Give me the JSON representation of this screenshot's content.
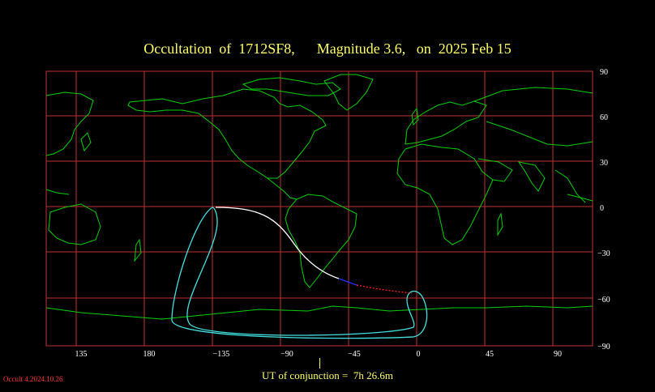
{
  "title": {
    "part1": "Occultation  of  1712SF8,",
    "part2": "Magnitude 3.6,",
    "part3": "on  2025 Feb 15"
  },
  "footer": {
    "conjunction": "UT of conjunction =  7h 26.6m",
    "version": "Occult 4.2024.10.26"
  },
  "axes": {
    "longitude_ticks": [
      "135",
      "180",
      "−135",
      "−90",
      "−45",
      "0",
      "45",
      "90"
    ],
    "latitude_ticks": [
      "90",
      "60",
      "30",
      "0",
      "−30",
      "−60",
      "−90"
    ]
  },
  "colors": {
    "grid": "#c03030",
    "coast": "#00d000",
    "path_limits": "#40e0e0",
    "central_line_day": "#ffffff",
    "central_line_twilight": "#2030ff",
    "central_line_night": "#ff2020",
    "text": "#ffff66"
  }
}
